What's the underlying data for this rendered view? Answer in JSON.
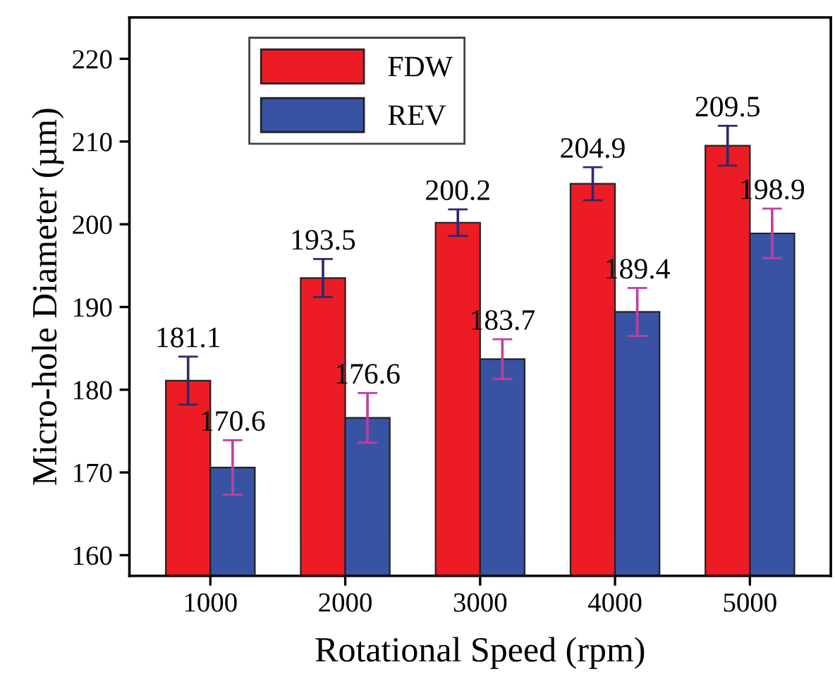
{
  "chart_data": {
    "type": "bar",
    "xlabel": "Rotational Speed (rpm)",
    "ylabel": "Micro-hole Diameter (µm)",
    "categories": [
      "1000",
      "2000",
      "3000",
      "4000",
      "5000"
    ],
    "series": [
      {
        "name": "FDW",
        "color": "#ed1c24",
        "values": [
          181.1,
          193.5,
          200.2,
          204.9,
          209.5
        ],
        "errors": [
          2.9,
          2.3,
          1.6,
          2.0,
          2.4
        ]
      },
      {
        "name": "REV",
        "color": "#3953a4",
        "values": [
          170.6,
          176.6,
          183.7,
          189.4,
          198.9
        ],
        "errors": [
          3.3,
          3.0,
          2.4,
          2.9,
          3.0
        ]
      }
    ],
    "ylim": [
      157.5,
      225
    ],
    "yticks": [
      160,
      170,
      180,
      190,
      200,
      210,
      220
    ],
    "data_labels": true,
    "legend": "top left",
    "grid": false
  }
}
